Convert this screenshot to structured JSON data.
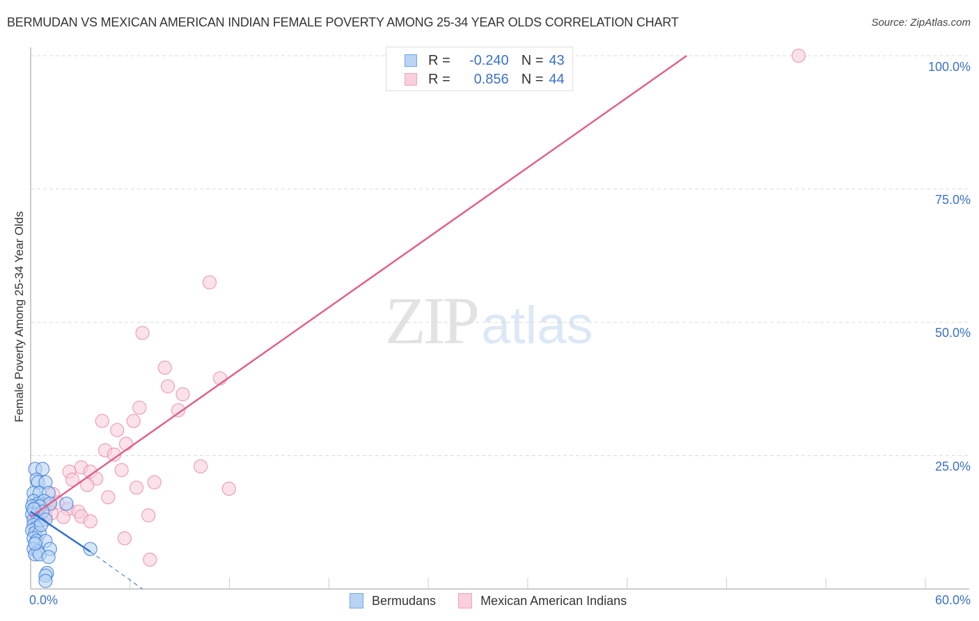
{
  "header": {
    "title": "BERMUDAN VS MEXICAN AMERICAN INDIAN FEMALE POVERTY AMONG 25-34 YEAR OLDS CORRELATION CHART",
    "source": "Source: ZipAtlas.com"
  },
  "watermark": {
    "zip": "ZIP",
    "atlas": "atlas"
  },
  "axes": {
    "ylabel": "Female Poverty Among 25-34 Year Olds",
    "yticks": [
      "100.0%",
      "75.0%",
      "50.0%",
      "25.0%"
    ],
    "xtick_left": "0.0%",
    "xtick_right": "60.0%"
  },
  "legend": {
    "rows": [
      {
        "series": "Bermudans",
        "r_label": "R =",
        "r_value": "-0.240",
        "n_label": "N =",
        "n_value": "43",
        "color": "#6fa8e8"
      },
      {
        "series": "Mexican American Indians",
        "r_label": "R =",
        "r_value": "0.856",
        "n_label": "N =",
        "n_value": "44",
        "color": "#f4a0b8"
      }
    ]
  },
  "bottom_legend": {
    "items": [
      {
        "label": "Bermudans",
        "color": "#6fa8e8"
      },
      {
        "label": "Mexican American Indians",
        "color": "#f4a0b8"
      }
    ]
  },
  "colors": {
    "blue_fill": "#b9d3f3",
    "blue_stroke": "#3a7ad8",
    "blue_line": "#2f6fcf",
    "pink_fill": "#f9cfdc",
    "pink_stroke": "#e888a8",
    "pink_line": "#e0608a",
    "tick_text": "#3a72c8",
    "grid": "#d9d9d9"
  },
  "chart_data": {
    "type": "scatter",
    "title": "BERMUDAN VS MEXICAN AMERICAN INDIAN FEMALE POVERTY AMONG 25-34 YEAR OLDS CORRELATION CHART",
    "xlabel": "",
    "ylabel": "Female Poverty Among 25-34 Year Olds",
    "xlim": [
      0,
      60
    ],
    "ylim": [
      0,
      100
    ],
    "x_tick_labels": [
      "0.0%",
      "60.0%"
    ],
    "y_tick_labels": [
      "25.0%",
      "50.0%",
      "75.0%",
      "100.0%"
    ],
    "grid": true,
    "legend_position": "top-center",
    "series": [
      {
        "name": "Bermudans",
        "r": -0.24,
        "n": 43,
        "trend": {
          "x0": 0,
          "y0": 14.5,
          "x1": 4.0,
          "y1": 7.0,
          "dashed_to_x": 7.5,
          "dashed_to_y": 0
        },
        "points": [
          [
            0.3,
            22.5
          ],
          [
            0.8,
            22.5
          ],
          [
            0.4,
            20.5
          ],
          [
            0.5,
            20.0
          ],
          [
            1.0,
            20.0
          ],
          [
            0.2,
            18.0
          ],
          [
            0.6,
            18.0
          ],
          [
            1.2,
            18.0
          ],
          [
            0.2,
            16.5
          ],
          [
            0.5,
            16.0
          ],
          [
            0.9,
            16.5
          ],
          [
            1.3,
            16.0
          ],
          [
            2.4,
            16.0
          ],
          [
            0.1,
            15.5
          ],
          [
            0.3,
            15.0
          ],
          [
            0.6,
            15.5
          ],
          [
            0.1,
            14.0
          ],
          [
            0.4,
            14.0
          ],
          [
            0.8,
            14.5
          ],
          [
            0.2,
            13.0
          ],
          [
            0.5,
            12.5
          ],
          [
            1.0,
            13.0
          ],
          [
            0.2,
            12.0
          ],
          [
            0.4,
            11.5
          ],
          [
            0.1,
            11.0
          ],
          [
            0.3,
            10.5
          ],
          [
            0.6,
            10.5
          ],
          [
            0.2,
            9.5
          ],
          [
            0.4,
            9.0
          ],
          [
            1.0,
            9.0
          ],
          [
            0.2,
            7.5
          ],
          [
            0.5,
            7.0
          ],
          [
            1.3,
            7.5
          ],
          [
            0.3,
            6.5
          ],
          [
            0.6,
            6.5
          ],
          [
            1.2,
            6.0
          ],
          [
            4.0,
            7.5
          ],
          [
            1.1,
            3.0
          ],
          [
            1.0,
            2.5
          ],
          [
            1.0,
            1.5
          ],
          [
            0.2,
            15.0
          ],
          [
            0.7,
            12.0
          ],
          [
            0.3,
            8.5
          ]
        ]
      },
      {
        "name": "Mexican American Indians",
        "r": 0.856,
        "n": 44,
        "trend": {
          "x0": 0,
          "y0": 13.5,
          "x1": 44.0,
          "y1": 100
        },
        "points": [
          [
            51.5,
            100.0
          ],
          [
            12.0,
            57.5
          ],
          [
            7.5,
            48.0
          ],
          [
            9.0,
            41.5
          ],
          [
            12.7,
            39.5
          ],
          [
            9.2,
            38.0
          ],
          [
            10.2,
            36.5
          ],
          [
            7.3,
            34.0
          ],
          [
            9.9,
            33.5
          ],
          [
            4.8,
            31.5
          ],
          [
            6.9,
            31.5
          ],
          [
            5.8,
            29.8
          ],
          [
            5.0,
            26.0
          ],
          [
            6.4,
            27.2
          ],
          [
            5.6,
            25.2
          ],
          [
            11.4,
            23.0
          ],
          [
            3.4,
            22.8
          ],
          [
            6.1,
            22.3
          ],
          [
            4.0,
            22.0
          ],
          [
            2.6,
            22.0
          ],
          [
            2.8,
            20.5
          ],
          [
            4.4,
            20.7
          ],
          [
            8.3,
            20.0
          ],
          [
            3.8,
            19.5
          ],
          [
            7.1,
            19.0
          ],
          [
            13.3,
            18.8
          ],
          [
            5.2,
            17.2
          ],
          [
            1.5,
            17.8
          ],
          [
            1.8,
            16.2
          ],
          [
            2.5,
            15.0
          ],
          [
            3.2,
            14.5
          ],
          [
            1.2,
            15.5
          ],
          [
            2.2,
            13.5
          ],
          [
            3.4,
            13.6
          ],
          [
            4.0,
            12.7
          ],
          [
            7.9,
            13.8
          ],
          [
            6.3,
            9.5
          ],
          [
            8.0,
            5.5
          ],
          [
            0.6,
            14.5
          ],
          [
            0.9,
            15.3
          ],
          [
            1.0,
            13.8
          ],
          [
            0.3,
            13.2
          ],
          [
            0.7,
            16.0
          ],
          [
            1.4,
            14.2
          ]
        ]
      }
    ]
  }
}
